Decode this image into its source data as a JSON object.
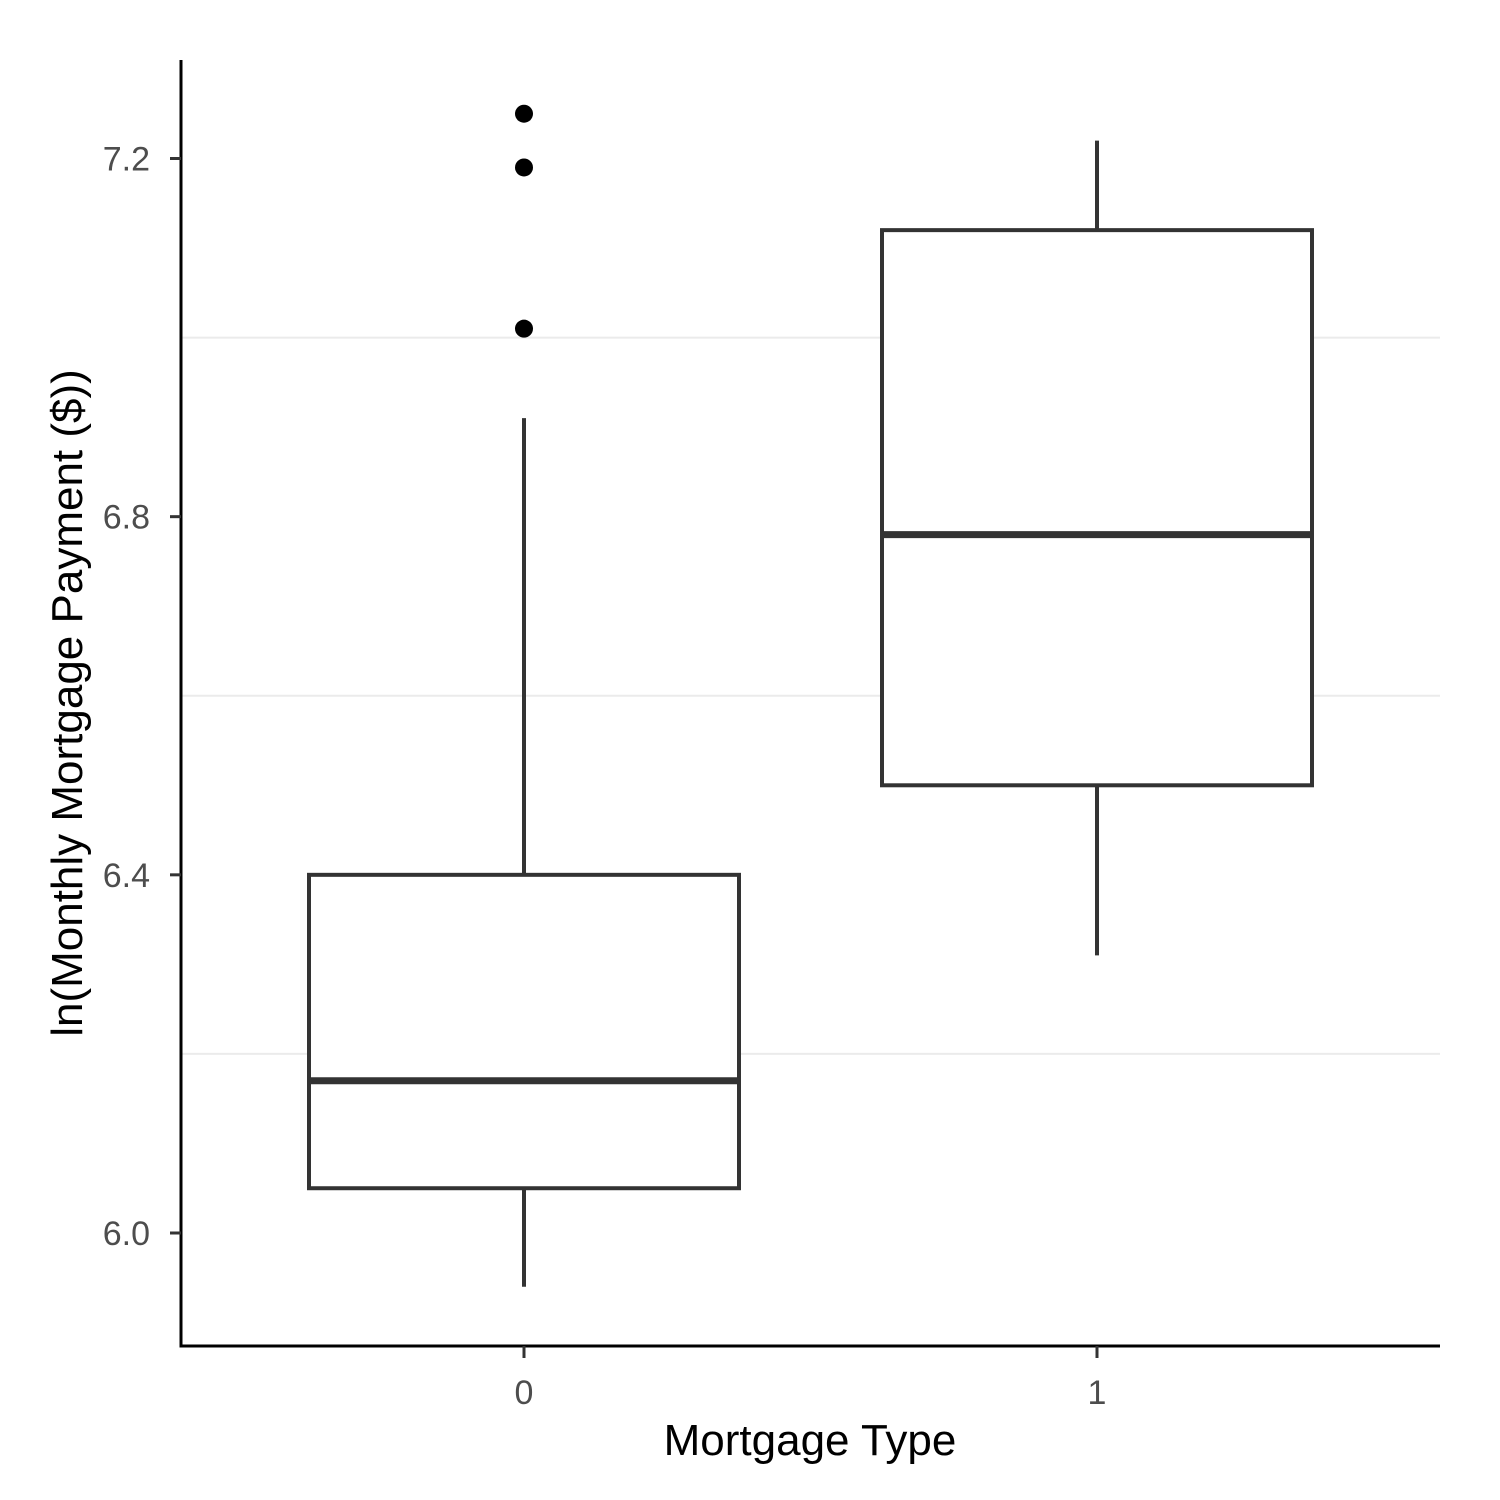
{
  "chart_data": {
    "type": "boxplot",
    "xlabel": "Mortgage Type",
    "ylabel": "ln(Monthly Mortgage Payment ($))",
    "categories": [
      "0",
      "1"
    ],
    "ylim": [
      5.875,
      7.3
    ],
    "y_ticks": [
      6.0,
      6.4,
      6.8,
      7.2
    ],
    "y_tick_labels": [
      "6.0",
      "6.4",
      "6.8",
      "7.2"
    ],
    "minor_gridlines": [
      6.2,
      6.6,
      7.0
    ],
    "grid": "minor horizontal only",
    "boxes": [
      {
        "category": "0",
        "whisker_low": 5.94,
        "q1": 6.05,
        "median": 6.17,
        "q3": 6.4,
        "whisker_high": 6.91,
        "outliers": [
          7.01,
          7.19,
          7.25
        ]
      },
      {
        "category": "1",
        "whisker_low": 6.31,
        "q1": 6.5,
        "median": 6.78,
        "q3": 7.12,
        "whisker_high": 7.22,
        "outliers": []
      }
    ],
    "colors": {
      "box_stroke": "#333333",
      "box_fill": "#ffffff",
      "outlier": "#000000",
      "axis": "#000000",
      "grid": "#ebebeb",
      "tick_text": "#4d4d4d"
    }
  }
}
